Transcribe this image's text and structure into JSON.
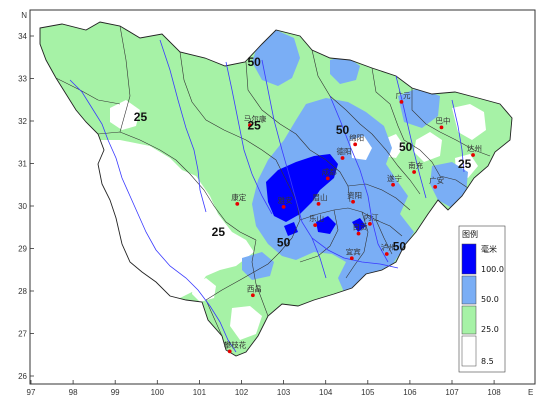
{
  "map": {
    "axes": {
      "x_ticks": [
        "97",
        "98",
        "99",
        "100",
        "101",
        "102",
        "103",
        "104",
        "105",
        "106",
        "107",
        "108"
      ],
      "x_unit": "E",
      "y_ticks": [
        "34",
        "33",
        "32",
        "31",
        "30",
        "29",
        "28",
        "27",
        "26"
      ],
      "y_unit": "N"
    },
    "cities": [
      {
        "name": "马尔康",
        "lon": 102.2,
        "lat": 31.9
      },
      {
        "name": "康定",
        "lon": 101.9,
        "lat": 30.05
      },
      {
        "name": "雅安",
        "lon": 103.0,
        "lat": 29.98
      },
      {
        "name": "成都",
        "lon": 104.05,
        "lat": 30.65
      },
      {
        "name": "绵阳",
        "lon": 104.7,
        "lat": 31.45
      },
      {
        "name": "德阳",
        "lon": 104.4,
        "lat": 31.13
      },
      {
        "name": "广元",
        "lon": 105.8,
        "lat": 32.45
      },
      {
        "name": "巴中",
        "lon": 106.75,
        "lat": 31.85
      },
      {
        "name": "达州",
        "lon": 107.5,
        "lat": 31.2
      },
      {
        "name": "南充",
        "lon": 106.1,
        "lat": 30.8
      },
      {
        "name": "遂宁",
        "lon": 105.6,
        "lat": 30.5
      },
      {
        "name": "广安",
        "lon": 106.6,
        "lat": 30.45
      },
      {
        "name": "资阳",
        "lon": 104.65,
        "lat": 30.1
      },
      {
        "name": "内江",
        "lon": 105.05,
        "lat": 29.58
      },
      {
        "name": "自贡",
        "lon": 104.78,
        "lat": 29.35
      },
      {
        "name": "乐山",
        "lon": 103.75,
        "lat": 29.55
      },
      {
        "name": "眉山",
        "lon": 103.83,
        "lat": 30.05
      },
      {
        "name": "宜宾",
        "lon": 104.62,
        "lat": 28.77
      },
      {
        "name": "泸州",
        "lon": 105.45,
        "lat": 28.87
      },
      {
        "name": "西昌",
        "lon": 102.27,
        "lat": 27.9
      },
      {
        "name": "攀枝花",
        "lon": 101.72,
        "lat": 26.58
      }
    ],
    "contour_labels": [
      {
        "text": "50",
        "lon": 102.3,
        "lat": 33.3
      },
      {
        "text": "25",
        "lon": 99.6,
        "lat": 32.0
      },
      {
        "text": "25",
        "lon": 102.3,
        "lat": 31.8
      },
      {
        "text": "50",
        "lon": 104.4,
        "lat": 31.7
      },
      {
        "text": "50",
        "lon": 105.9,
        "lat": 31.3
      },
      {
        "text": "25",
        "lon": 107.3,
        "lat": 30.9
      },
      {
        "text": "25",
        "lon": 101.45,
        "lat": 29.3
      },
      {
        "text": "50",
        "lon": 103.0,
        "lat": 29.05
      },
      {
        "text": "50",
        "lon": 105.75,
        "lat": 28.95
      }
    ]
  },
  "legend": {
    "title": "图例",
    "unit": "毫米",
    "items": [
      {
        "value": "100.0",
        "color": "#0000ff"
      },
      {
        "value": "50.0",
        "color": "#7aaef5"
      },
      {
        "value": "25.0",
        "color": "#a6f2a6"
      },
      {
        "value": "8.5",
        "color": "#ffffff"
      }
    ]
  },
  "colors": {
    "rain_25_50": "#a6f2a6",
    "rain_50_100": "#7aaef5",
    "rain_100_plus": "#0000ff",
    "river": "#3a3aff",
    "boundary": "#333333",
    "city_dot": "#e60000"
  }
}
